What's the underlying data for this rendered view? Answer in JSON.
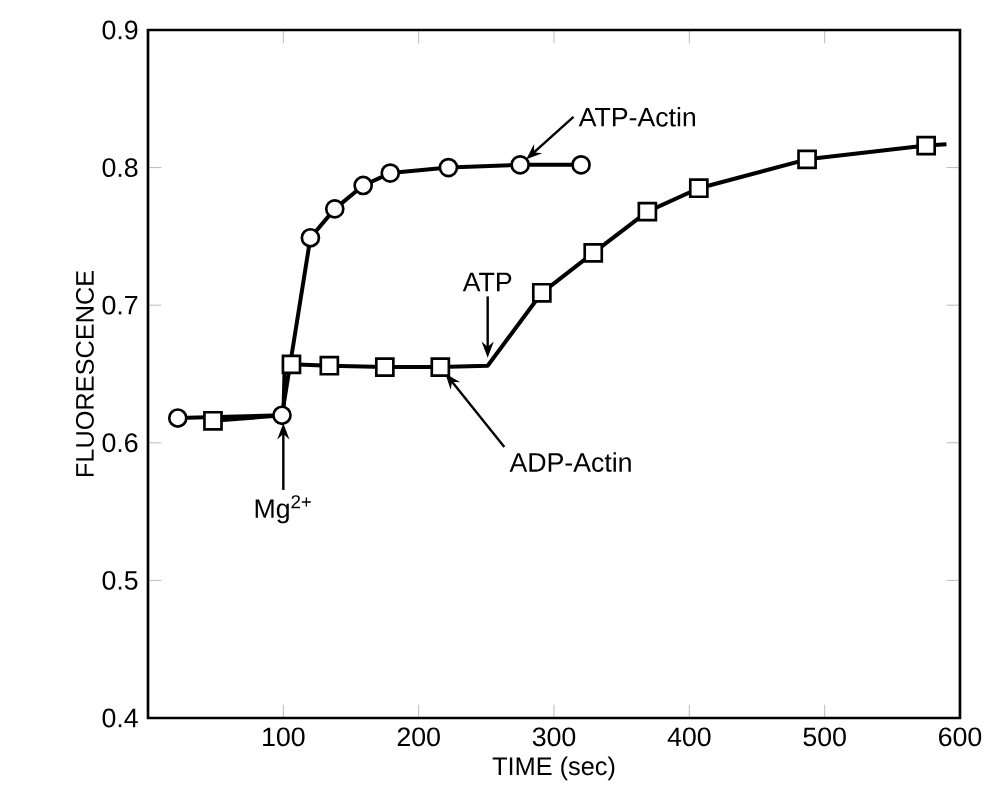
{
  "chart_data": {
    "type": "line",
    "xlabel": "TIME (sec)",
    "ylabel": "FLUORESCENCE",
    "xlim": [
      0,
      600
    ],
    "ylim": [
      0.4,
      0.9
    ],
    "xticks": [
      100,
      200,
      300,
      400,
      500,
      600
    ],
    "yticks": [
      0.4,
      0.5,
      0.6,
      0.7,
      0.8,
      0.9
    ],
    "grid": false,
    "series": [
      {
        "marker": "circle",
        "color": "#000000",
        "x": [
          22,
          99,
          120,
          138,
          159,
          179,
          222,
          275,
          320
        ],
        "values": [
          0.618,
          0.62,
          0.749,
          0.77,
          0.787,
          0.796,
          0.8,
          0.802,
          0.802
        ]
      },
      {
        "marker": "none",
        "color": "#000000",
        "x": [
          48,
          100,
          101,
          106,
          134,
          175,
          216,
          251,
          291,
          329,
          369,
          407,
          487,
          575,
          590
        ],
        "values": [
          0.616,
          0.62,
          0.656,
          0.657,
          0.656,
          0.655,
          0.655,
          0.656,
          0.709,
          0.738,
          0.768,
          0.785,
          0.806,
          0.816,
          0.817
        ]
      },
      {
        "type": "scatter",
        "marker": "square",
        "color": "#000000",
        "x": [
          48,
          106,
          134,
          175,
          216,
          291,
          329,
          369,
          407,
          487,
          575
        ],
        "values": [
          0.616,
          0.657,
          0.656,
          0.655,
          0.655,
          0.709,
          0.738,
          0.768,
          0.785,
          0.806,
          0.816
        ]
      }
    ],
    "annotations": [
      {
        "text": "ATP-Actin",
        "x": 275,
        "y": 0.802
      },
      {
        "text": "ADP-Actin",
        "x": 216,
        "y": 0.655
      },
      {
        "text": "ATP",
        "x": 251,
        "y": 0.656
      },
      {
        "text": "Mg$^{2+}$",
        "x": 100,
        "y": 0.62
      }
    ]
  }
}
